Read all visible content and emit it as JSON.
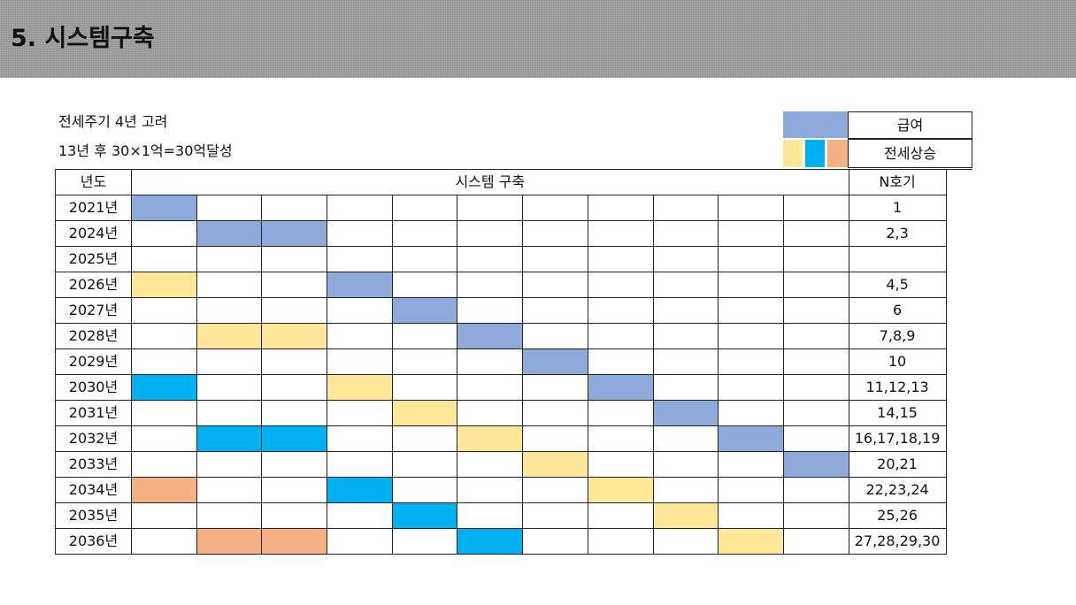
{
  "header": {
    "title": "5. 시스템구축"
  },
  "notes": [
    "전세주기 4년 고려",
    "13년 후 30×1억=30억달성"
  ],
  "legend": {
    "salary_label": "급여",
    "jeonse_label": "전세상승",
    "salary_color": "#8eaadb",
    "jeonse_colors": [
      "#ffe699",
      "#00b0f0",
      "#f4b183"
    ]
  },
  "table": {
    "headers": {
      "year": "년도",
      "system": "시스템 구축",
      "unit": "N호기"
    },
    "colors": {
      "B": "#8eaadb",
      "Y": "#ffe699",
      "C": "#00b0f0",
      "O": "#f4b183"
    },
    "rows": [
      {
        "year": "2021년",
        "cells": [
          "B",
          "",
          "",
          "",
          "",
          "",
          "",
          "",
          "",
          "",
          ""
        ],
        "unit": "1"
      },
      {
        "year": "2024년",
        "cells": [
          "",
          "B",
          "B",
          "",
          "",
          "",
          "",
          "",
          "",
          "",
          ""
        ],
        "unit": "2,3"
      },
      {
        "year": "2025년",
        "cells": [
          "",
          "",
          "",
          "",
          "",
          "",
          "",
          "",
          "",
          "",
          ""
        ],
        "unit": ""
      },
      {
        "year": "2026년",
        "cells": [
          "Y",
          "",
          "",
          "B",
          "",
          "",
          "",
          "",
          "",
          "",
          ""
        ],
        "unit": "4,5"
      },
      {
        "year": "2027년",
        "cells": [
          "",
          "",
          "",
          "",
          "B",
          "",
          "",
          "",
          "",
          "",
          ""
        ],
        "unit": "6"
      },
      {
        "year": "2028년",
        "cells": [
          "",
          "Y",
          "Y",
          "",
          "",
          "B",
          "",
          "",
          "",
          "",
          ""
        ],
        "unit": "7,8,9"
      },
      {
        "year": "2029년",
        "cells": [
          "",
          "",
          "",
          "",
          "",
          "",
          "B",
          "",
          "",
          "",
          ""
        ],
        "unit": "10"
      },
      {
        "year": "2030년",
        "cells": [
          "C",
          "",
          "",
          "Y",
          "",
          "",
          "",
          "B",
          "",
          "",
          ""
        ],
        "unit": "11,12,13"
      },
      {
        "year": "2031년",
        "cells": [
          "",
          "",
          "",
          "",
          "Y",
          "",
          "",
          "",
          "B",
          "",
          ""
        ],
        "unit": "14,15"
      },
      {
        "year": "2032년",
        "cells": [
          "",
          "C",
          "C",
          "",
          "",
          "Y",
          "",
          "",
          "",
          "B",
          ""
        ],
        "unit": "16,17,18,19"
      },
      {
        "year": "2033년",
        "cells": [
          "",
          "",
          "",
          "",
          "",
          "",
          "Y",
          "",
          "",
          "",
          "B"
        ],
        "unit": "20,21"
      },
      {
        "year": "2034년",
        "cells": [
          "O",
          "",
          "",
          "C",
          "",
          "",
          "",
          "Y",
          "",
          "",
          ""
        ],
        "unit": "22,23,24"
      },
      {
        "year": "2035년",
        "cells": [
          "",
          "",
          "",
          "",
          "C",
          "",
          "",
          "",
          "Y",
          "",
          ""
        ],
        "unit": "25,26"
      },
      {
        "year": "2036년",
        "cells": [
          "",
          "O",
          "O",
          "",
          "",
          "C",
          "",
          "",
          "",
          "Y",
          ""
        ],
        "unit": "27,28,29,30"
      }
    ]
  }
}
